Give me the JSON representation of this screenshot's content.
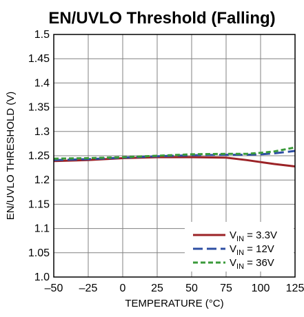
{
  "chart_data": {
    "type": "line",
    "title": "EN/UVLO Threshold (Falling)",
    "xlabel": "TEMPERATURE (°C)",
    "ylabel": "EN/UVLO THRESHOLD (V)",
    "xlim": [
      -50,
      125
    ],
    "ylim": [
      1.0,
      1.5
    ],
    "xticks": [
      -50,
      -25,
      0,
      25,
      50,
      75,
      100,
      125
    ],
    "xtick_labels": [
      "–50",
      "–25",
      "0",
      "25",
      "50",
      "75",
      "100",
      "125"
    ],
    "yticks": [
      1.0,
      1.05,
      1.1,
      1.15,
      1.2,
      1.25,
      1.3,
      1.35,
      1.4,
      1.45,
      1.5
    ],
    "ytick_labels": [
      "1.0",
      "1.05",
      "1.1",
      "1.15",
      "1.2",
      "1.25",
      "1.3",
      "1.35",
      "1.4",
      "1.45",
      "1.5"
    ],
    "grid": true,
    "legend_position": "bottom-right",
    "series": [
      {
        "label_main": "V",
        "label_sub": "IN",
        "label_rest": " = 3.3V",
        "color": "#9b2226",
        "dash": "solid",
        "x": [
          -50,
          -25,
          0,
          25,
          50,
          75,
          90,
          100,
          110,
          125
        ],
        "y": [
          1.239,
          1.241,
          1.245,
          1.247,
          1.247,
          1.246,
          1.241,
          1.237,
          1.233,
          1.228
        ]
      },
      {
        "label_main": "V",
        "label_sub": "IN",
        "label_rest": " = 12V",
        "color": "#2e4fa3",
        "dash": "long",
        "x": [
          -50,
          -25,
          0,
          25,
          50,
          75,
          90,
          100,
          110,
          125
        ],
        "y": [
          1.241,
          1.243,
          1.246,
          1.249,
          1.251,
          1.252,
          1.252,
          1.253,
          1.255,
          1.26
        ]
      },
      {
        "label_main": "V",
        "label_sub": "IN",
        "label_rest": " = 36V",
        "color": "#3a9a3a",
        "dash": "short",
        "x": [
          -50,
          -25,
          0,
          25,
          50,
          75,
          90,
          100,
          110,
          125
        ],
        "y": [
          1.244,
          1.245,
          1.247,
          1.25,
          1.253,
          1.254,
          1.254,
          1.256,
          1.259,
          1.267
        ]
      }
    ]
  }
}
